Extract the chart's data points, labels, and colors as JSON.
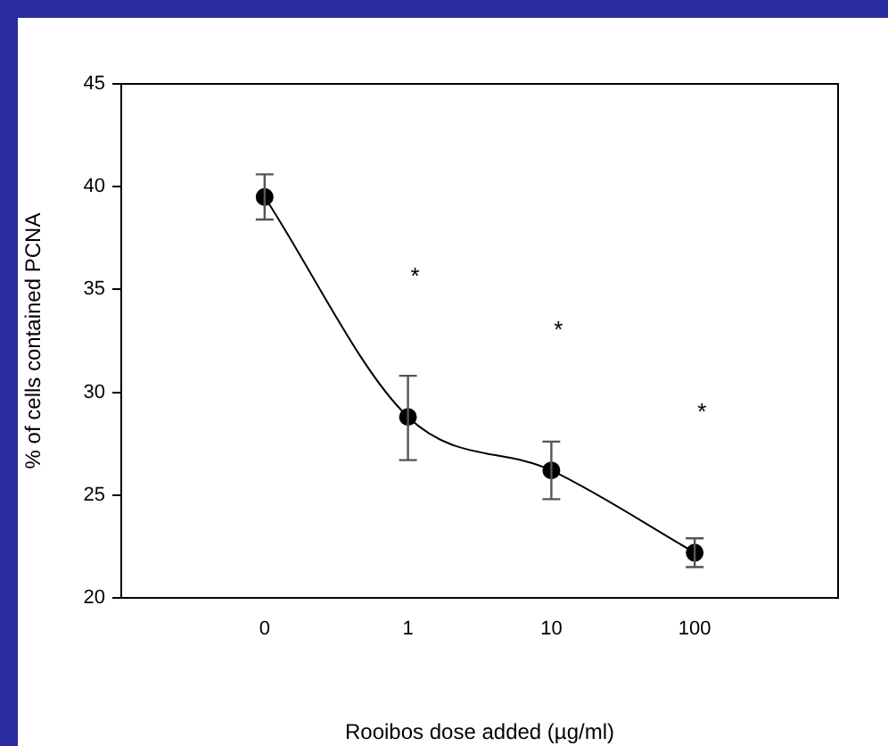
{
  "chart_data": {
    "type": "line",
    "xlabel": "Rooibos dose added (µg/ml)",
    "ylabel": "% of cells contained PCNA",
    "categories": [
      "0",
      "1",
      "10",
      "100"
    ],
    "series": [
      {
        "color": "#000000",
        "values": [
          39.5,
          28.8,
          26.2,
          22.2
        ],
        "errors": [
          [
            38.4,
            40.6
          ],
          [
            26.7,
            30.8
          ],
          [
            24.8,
            27.6
          ],
          [
            21.5,
            22.9
          ]
        ]
      }
    ],
    "ylim": [
      20,
      45
    ],
    "yticks": [
      20,
      25,
      30,
      35,
      40,
      45
    ],
    "grid": false,
    "legend": false,
    "marker": "circle",
    "line_style": "solid",
    "annotations": [
      "*",
      "*",
      "*"
    ]
  }
}
